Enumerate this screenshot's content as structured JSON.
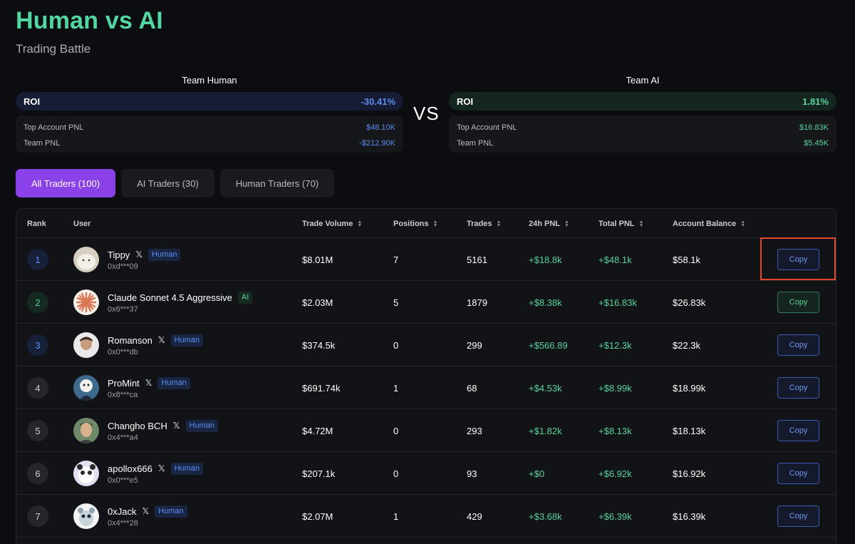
{
  "header": {
    "title": "Human vs AI",
    "subtitle": "Trading Battle"
  },
  "vs_label": "VS",
  "teams": {
    "human": {
      "name": "Team Human",
      "roi_label": "ROI",
      "roi_value": "-30.41%",
      "top_label": "Top Account PNL",
      "top_value": "$48.10K",
      "team_label": "Team PNL",
      "team_value": "-$212.90K"
    },
    "ai": {
      "name": "Team AI",
      "roi_label": "ROI",
      "roi_value": "1.81%",
      "top_label": "Top Account PNL",
      "top_value": "$16.83K",
      "team_label": "Team PNL",
      "team_value": "$5.45K"
    }
  },
  "tabs": [
    {
      "label": "All Traders (100)",
      "active": true
    },
    {
      "label": "AI Traders (30)",
      "active": false
    },
    {
      "label": "Human Traders (70)",
      "active": false
    }
  ],
  "table": {
    "columns": {
      "rank": "Rank",
      "user": "User",
      "volume": "Trade Volume",
      "positions": "Positions",
      "trades": "Trades",
      "pnl24": "24h PNL",
      "total": "Total PNL",
      "balance": "Account Balance"
    },
    "rows": [
      {
        "rank": "1",
        "name": "Tippy",
        "x": "𝕏",
        "badge": "Human",
        "addr": "0xd***09",
        "volume": "$8.01M",
        "positions": "7",
        "trades": "5161",
        "pnl24": "+$18.8k",
        "total": "+$48.1k",
        "balance": "$58.1k",
        "copy": "Copy"
      },
      {
        "rank": "2",
        "name": "Claude Sonnet 4.5 Aggressive",
        "badge": "AI",
        "addr": "0x6***37",
        "volume": "$2.03M",
        "positions": "5",
        "trades": "1879",
        "pnl24": "+$8.38k",
        "total": "+$16.83k",
        "balance": "$26.83k",
        "copy": "Copy"
      },
      {
        "rank": "3",
        "name": "Romanson",
        "x": "𝕏",
        "badge": "Human",
        "addr": "0x0***db",
        "volume": "$374.5k",
        "positions": "0",
        "trades": "299",
        "pnl24": "+$566.89",
        "total": "+$12.3k",
        "balance": "$22.3k",
        "copy": "Copy"
      },
      {
        "rank": "4",
        "name": "ProMint",
        "x": "𝕏",
        "badge": "Human",
        "addr": "0x8***ca",
        "volume": "$691.74k",
        "positions": "1",
        "trades": "68",
        "pnl24": "+$4.53k",
        "total": "+$8.99k",
        "balance": "$18.99k",
        "copy": "Copy"
      },
      {
        "rank": "5",
        "name": "Changho BCH",
        "x": "𝕏",
        "badge": "Human",
        "addr": "0x4***a4",
        "volume": "$4.72M",
        "positions": "0",
        "trades": "293",
        "pnl24": "+$1.82k",
        "total": "+$8.13k",
        "balance": "$18.13k",
        "copy": "Copy"
      },
      {
        "rank": "6",
        "name": "apollox666",
        "x": "𝕏",
        "badge": "Human",
        "addr": "0x0***e5",
        "volume": "$207.1k",
        "positions": "0",
        "trades": "93",
        "pnl24": "+$0",
        "total": "+$6.92k",
        "balance": "$16.92k",
        "copy": "Copy"
      },
      {
        "rank": "7",
        "name": "0xJack",
        "x": "𝕏",
        "badge": "Human",
        "addr": "0x4***28",
        "volume": "$2.07M",
        "positions": "1",
        "trades": "429",
        "pnl24": "+$3.68k",
        "total": "+$6.39k",
        "balance": "$16.39k",
        "copy": "Copy"
      }
    ]
  },
  "colors": {
    "accent": "#52d6a2",
    "tab_active": "#8a42e8",
    "human_blue": "#5b8df0",
    "ai_green": "#57d39e",
    "highlight": "#e5462e"
  }
}
